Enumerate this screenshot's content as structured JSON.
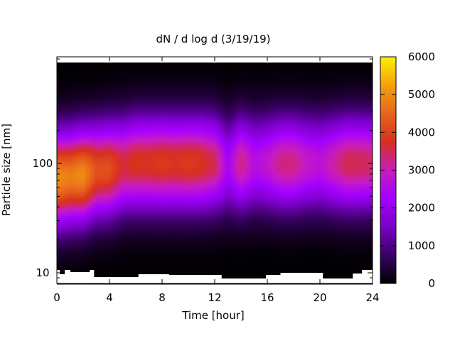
{
  "chart_data": {
    "type": "heatmap",
    "title": "dN / d log d (3/19/19)",
    "xlabel": "Time [hour]",
    "ylabel": "Particle size [nm]",
    "xlim": [
      0,
      24
    ],
    "ylim": [
      8,
      900
    ],
    "y_scale": "log",
    "x_ticks": [
      0,
      4,
      8,
      12,
      16,
      20,
      24
    ],
    "y_ticks": [
      {
        "value": 10,
        "label": "10"
      },
      {
        "value": 100,
        "label": "100"
      }
    ],
    "colorbar": {
      "min": 0,
      "max": 6000,
      "ticks": [
        0,
        1000,
        2000,
        3000,
        4000,
        5000,
        6000
      ],
      "palette": [
        "#000000",
        "#3a0066",
        "#7b00c8",
        "#a400ff",
        "#c81cbe",
        "#d8301f",
        "#e8641c",
        "#f2a00e",
        "#fff000"
      ]
    },
    "size_distribution": {
      "time_hour": [
        0,
        1,
        2,
        3,
        4,
        5,
        6,
        7,
        8,
        9,
        10,
        11,
        12,
        13,
        14,
        15,
        16,
        17,
        18,
        19,
        20,
        21,
        22,
        23,
        24
      ],
      "peak_diameter_nm": [
        72,
        75,
        78,
        85,
        88,
        95,
        100,
        100,
        100,
        100,
        100,
        100,
        100,
        95,
        100,
        100,
        100,
        100,
        100,
        100,
        100,
        100,
        100,
        100,
        100
      ],
      "peak_concentration": [
        5000,
        4800,
        5000,
        4200,
        4200,
        3600,
        3800,
        3800,
        3900,
        3800,
        3900,
        3800,
        3500,
        2300,
        3300,
        2600,
        2800,
        3300,
        3300,
        2900,
        2700,
        3100,
        3500,
        3500,
        3400
      ]
    },
    "grid": false,
    "legend": "none"
  }
}
